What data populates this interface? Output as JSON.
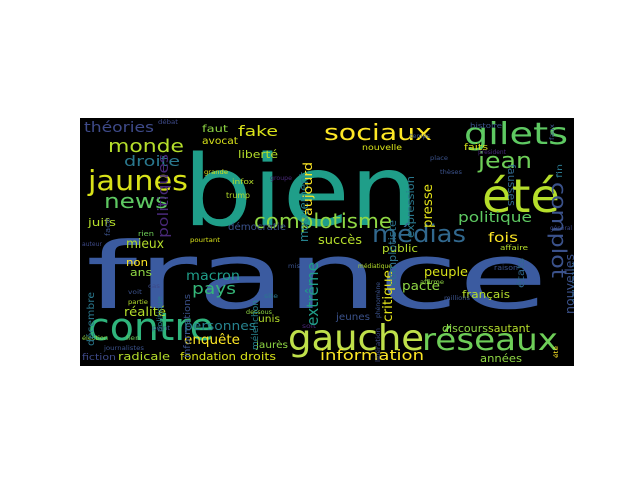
{
  "words": [
    {
      "id": "france",
      "text": "france",
      "color": "#3b5ba0"
    },
    {
      "id": "bien",
      "text": "bien",
      "color": "#1f9e89"
    },
    {
      "id": "gauche",
      "text": "gauche",
      "color": "#bfe04a"
    },
    {
      "id": "contre",
      "text": "contre",
      "color": "#2fb47c"
    },
    {
      "id": "ete",
      "text": "été",
      "color": "#b5de2b"
    },
    {
      "id": "reseaux",
      "text": "réseaux",
      "color": "#6ece58"
    },
    {
      "id": "gilets",
      "text": "gilets",
      "color": "#5ec962"
    },
    {
      "id": "jaunes",
      "text": "jaunes",
      "color": "#d8e219"
    },
    {
      "id": "sociaux",
      "text": "sociaux",
      "color": "#fde725"
    },
    {
      "id": "medias",
      "text": "médias",
      "color": "#31688e"
    },
    {
      "id": "complotisme",
      "text": "complotisme",
      "color": "#8fd744"
    },
    {
      "id": "news",
      "text": "news",
      "color": "#5ec962"
    },
    {
      "id": "monde",
      "text": "monde",
      "color": "#b5de2b"
    },
    {
      "id": "complot",
      "text": "complot",
      "color": "#3b528b"
    },
    {
      "id": "jean",
      "text": "jean",
      "color": "#6ece58"
    },
    {
      "id": "theories",
      "text": "théories",
      "color": "#3e4a89"
    },
    {
      "id": "fake",
      "text": "fake",
      "color": "#d8e219"
    },
    {
      "id": "droite",
      "text": "droite",
      "color": "#2a788e"
    },
    {
      "id": "politiques",
      "text": "politiques",
      "color": "#482878"
    },
    {
      "id": "politique",
      "text": "politique",
      "color": "#5ec962"
    },
    {
      "id": "extreme",
      "text": "extrême",
      "color": "#1f9e89"
    },
    {
      "id": "information",
      "text": "information",
      "color": "#fde725"
    },
    {
      "id": "mouvement",
      "text": "mouvement",
      "color": "#26828e"
    },
    {
      "id": "aujourd",
      "text": "aujourd",
      "color": "#fde725"
    },
    {
      "id": "macron",
      "text": "macron",
      "color": "#1f9e89"
    },
    {
      "id": "pays",
      "text": "pays",
      "color": "#35b779"
    },
    {
      "id": "personnes",
      "text": "personnes",
      "color": "#26828e"
    },
    {
      "id": "enquete",
      "text": "enquête",
      "color": "#fde725"
    },
    {
      "id": "succes",
      "text": "succès",
      "color": "#b5de2b"
    },
    {
      "id": "democratie",
      "text": "démocratie",
      "color": "#3b528b"
    },
    {
      "id": "liberte",
      "text": "liberté",
      "color": "#b5de2b"
    },
    {
      "id": "faut",
      "text": "faut",
      "color": "#8fd744"
    },
    {
      "id": "avocat",
      "text": "avocat",
      "color": "#d8e219"
    },
    {
      "id": "fois",
      "text": "fois",
      "color": "#fde725"
    },
    {
      "id": "fausses",
      "text": "fausses",
      "color": "#31688e"
    },
    {
      "id": "presse",
      "text": "presse",
      "color": "#e5e419"
    },
    {
      "id": "expression",
      "text": "expression",
      "color": "#2a788e"
    },
    {
      "id": "public",
      "text": "public",
      "color": "#b5de2b"
    },
    {
      "id": "critique",
      "text": "critique",
      "color": "#e5e419"
    },
    {
      "id": "complotiste",
      "text": "complotiste",
      "color": "#2c728e"
    },
    {
      "id": "peuple",
      "text": "peuple",
      "color": "#d8e219"
    },
    {
      "id": "francais",
      "text": "français",
      "color": "#b5de2b"
    },
    {
      "id": "pacte",
      "text": "pacte",
      "color": "#8fd744"
    },
    {
      "id": "discours",
      "text": "discours",
      "color": "#8fd744"
    },
    {
      "id": "sautant",
      "text": "sautant",
      "color": "#b5de2b"
    },
    {
      "id": "nouvelles",
      "text": "nouvelles",
      "color": "#3b528b"
    },
    {
      "id": "annees",
      "text": "années",
      "color": "#8fd744"
    },
    {
      "id": "fondation",
      "text": "fondation",
      "color": "#d8e219"
    },
    {
      "id": "droits",
      "text": "droits",
      "color": "#d8e219"
    },
    {
      "id": "radicale",
      "text": "radicale",
      "color": "#b5de2b"
    },
    {
      "id": "fiction",
      "text": "fiction",
      "color": "#3e4a89"
    },
    {
      "id": "decembre",
      "text": "décembre",
      "color": "#2a788e"
    },
    {
      "id": "realite",
      "text": "réalité",
      "color": "#b5de2b"
    },
    {
      "id": "ans",
      "text": "ans",
      "color": "#8fd744"
    },
    {
      "id": "mieux",
      "text": "mieux",
      "color": "#b5de2b"
    },
    {
      "id": "non",
      "text": "non",
      "color": "#fde725"
    },
    {
      "id": "unis",
      "text": "unis",
      "color": "#b5de2b"
    },
    {
      "id": "melenchon",
      "text": "mélenchon",
      "color": "#26828e"
    },
    {
      "id": "jaures",
      "text": "jaurès",
      "color": "#8fd744"
    },
    {
      "id": "jeunes",
      "text": "jeunes",
      "color": "#3b528b"
    },
    {
      "id": "etats",
      "text": "états",
      "color": "#31688e"
    },
    {
      "id": "nouvelle",
      "text": "nouvelle",
      "color": "#d8e219"
    },
    {
      "id": "faits",
      "text": "faits",
      "color": "#d8e219"
    },
    {
      "id": "internet",
      "text": "internet",
      "color": "#31688e"
    },
    {
      "id": "juifs",
      "text": "juifs",
      "color": "#b5de2b"
    },
    {
      "id": "informations",
      "text": "informations",
      "color": "#3b528b"
    },
    {
      "id": "histoire",
      "text": "histoire",
      "color": "#3b528b"
    },
    {
      "id": "infox",
      "text": "infox",
      "color": "#b5de2b"
    },
    {
      "id": "trump",
      "text": "trump",
      "color": "#b5de2b"
    },
    {
      "id": "affaire",
      "text": "affaire",
      "color": "#b5de2b"
    },
    {
      "id": "raison",
      "text": "raison",
      "color": "#3b528b"
    },
    {
      "id": "debat",
      "text": "débat",
      "color": "#3e4a89"
    },
    {
      "id": "politique2",
      "text": "politique",
      "color": "#2a788e"
    },
    {
      "id": "grande",
      "text": "grande",
      "color": "#d8e219"
    },
    {
      "id": "rien",
      "text": "rien",
      "color": "#6ece58"
    },
    {
      "id": "face",
      "text": "face",
      "color": "#3b528b"
    },
    {
      "id": "president",
      "text": "président",
      "color": "#482878"
    },
    {
      "id": "general",
      "text": "général",
      "color": "#3e4a89"
    },
    {
      "id": "affirme",
      "text": "affirme",
      "color": "#8fd744"
    },
    {
      "id": "journalistes",
      "text": "journalistes",
      "color": "#3b528b"
    },
    {
      "id": "auteur",
      "text": "auteur",
      "color": "#3e4a89"
    },
    {
      "id": "election",
      "text": "élection",
      "color": "#8fd744"
    },
    {
      "id": "pourtant",
      "text": "pourtant",
      "color": "#d8e219"
    },
    {
      "id": "site",
      "text": "site",
      "color": "#2a788e"
    },
    {
      "id": "millions",
      "text": "millions",
      "color": "#3b528b"
    },
    {
      "id": "lien",
      "text": "lien",
      "color": "#6ece58"
    },
    {
      "id": "ete2",
      "text": "été",
      "color": "#fde725"
    },
    {
      "id": "point",
      "text": "point",
      "color": "#3b528b"
    },
    {
      "id": "groupe",
      "text": "groupe",
      "color": "#482878"
    },
    {
      "id": "cas",
      "text": "cas",
      "color": "#3e4a89"
    },
    {
      "id": "fin",
      "text": "fin",
      "color": "#2a788e"
    },
    {
      "id": "faux",
      "text": "faux",
      "color": "#3b528b"
    },
    {
      "id": "voit",
      "text": "voit",
      "color": "#3b528b"
    },
    {
      "id": "mis",
      "text": "mis",
      "color": "#3b528b"
    },
    {
      "id": "temps",
      "text": "temps",
      "color": "#3b528b"
    },
    {
      "id": "place",
      "text": "place",
      "color": "#3b528b"
    },
    {
      "id": "theses",
      "text": "thèses",
      "color": "#3b528b"
    },
    {
      "id": "partie",
      "text": "partie",
      "color": "#b5de2b"
    },
    {
      "id": "phenomene",
      "text": "phénomène",
      "color": "#3b528b"
    },
    {
      "id": "mediatique",
      "text": "médiatique",
      "color": "#b5de2b"
    },
    {
      "id": "liberation",
      "text": "libération",
      "color": "#3e4a89"
    },
    {
      "id": "dessous",
      "text": "dessous",
      "color": "#8fd744"
    },
    {
      "id": "soit",
      "text": "soit",
      "color": "#482878"
    }
  ]
}
